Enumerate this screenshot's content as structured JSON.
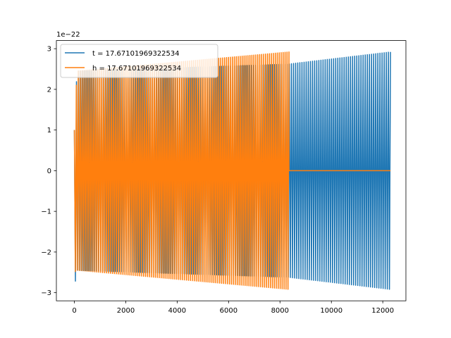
{
  "chart_data": {
    "type": "line",
    "title": "",
    "xlabel": "",
    "ylabel": "",
    "offset_label": "1e−22",
    "xlim": [
      -700,
      12900
    ],
    "ylim": [
      -3.2,
      3.2
    ],
    "grid": false,
    "legend_position": "top-left",
    "x_ticks": [
      0,
      2000,
      4000,
      6000,
      8000,
      10000,
      12000
    ],
    "x_tick_labels": [
      "0",
      "2000",
      "4000",
      "6000",
      "8000",
      "10000",
      "12000"
    ],
    "y_ticks": [
      -3,
      -2,
      -1,
      0,
      1,
      2,
      3
    ],
    "y_tick_labels": [
      "−3",
      "−2",
      "−1",
      "0",
      "1",
      "2",
      "3"
    ],
    "series": [
      {
        "name": "t = 17.67101969322534",
        "color": "#1f77b4",
        "x_start": 0,
        "x_end": 12300,
        "oscillation_count": 150,
        "envelope": [
          {
            "x": 0,
            "upper": 1.0,
            "lower": -2.9
          },
          {
            "x": 100,
            "upper": 2.45,
            "lower": -2.45
          },
          {
            "x": 8300,
            "upper": 2.62,
            "lower": -2.62
          },
          {
            "x": 12300,
            "upper": 2.92,
            "lower": -2.92
          }
        ]
      },
      {
        "name": "h = 17.67101969322534",
        "color": "#ff7f0e",
        "x_start": 0,
        "x_end": 8350,
        "oscillation_count": 110,
        "tail_value": 0,
        "tail_x_end": 12300,
        "envelope": [
          {
            "x": 0,
            "upper": 1.0,
            "lower": -2.5
          },
          {
            "x": 100,
            "upper": 2.45,
            "lower": -2.45
          },
          {
            "x": 8350,
            "upper": 2.92,
            "lower": -2.92
          }
        ]
      }
    ]
  }
}
